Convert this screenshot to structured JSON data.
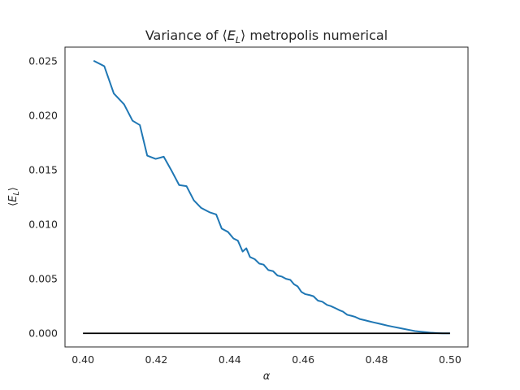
{
  "chart_data": {
    "type": "line",
    "title": "Variance of ⟨Eₗ⟩ metropolis numerical",
    "title_parts": {
      "before": "Variance of ⟨",
      "var": "E",
      "sub": "L",
      "after": "⟩ metropolis numerical"
    },
    "xlabel": "α",
    "ylabel_parts": {
      "before": "⟨",
      "var": "E",
      "sub": "L",
      "after": "⟩"
    },
    "xlim": [
      0.3951,
      0.5049
    ],
    "ylim": [
      -0.00125,
      0.02625
    ],
    "x_ticks": [
      0.4,
      0.42,
      0.44,
      0.46,
      0.48,
      0.5
    ],
    "x_tick_labels": [
      "0.40",
      "0.42",
      "0.44",
      "0.46",
      "0.48",
      "0.50"
    ],
    "y_ticks": [
      0.0,
      0.005,
      0.01,
      0.015,
      0.02,
      0.025
    ],
    "y_tick_labels": [
      "0.000",
      "0.005",
      "0.010",
      "0.015",
      "0.020",
      "0.025"
    ],
    "grid": false,
    "series": [
      {
        "color": "#1f77b4",
        "x": [
          0.4029,
          0.4058,
          0.4084,
          0.4112,
          0.4135,
          0.4155,
          0.4175,
          0.4198,
          0.422,
          0.424,
          0.4262,
          0.4282,
          0.4302,
          0.4322,
          0.4345,
          0.4363,
          0.4378,
          0.4395,
          0.441,
          0.4422,
          0.4435,
          0.4445,
          0.4455,
          0.4468,
          0.448,
          0.4492,
          0.4505,
          0.4518,
          0.453,
          0.4542,
          0.4553,
          0.4565,
          0.4575,
          0.4585,
          0.4595,
          0.4605,
          0.4618,
          0.4628,
          0.464,
          0.4652,
          0.4665,
          0.4675,
          0.4688,
          0.47,
          0.4708,
          0.472,
          0.4732,
          0.4742,
          0.4755,
          0.4768,
          0.478,
          0.4792,
          0.4805,
          0.4818,
          0.483,
          0.4845,
          0.486,
          0.4875,
          0.489,
          0.4905,
          0.492,
          0.4935,
          0.495,
          0.4965,
          0.498,
          0.5
        ],
        "y": [
          0.025,
          0.0245,
          0.022,
          0.021,
          0.0195,
          0.0191,
          0.0163,
          0.016,
          0.0162,
          0.015,
          0.0136,
          0.0135,
          0.0122,
          0.0115,
          0.0111,
          0.0109,
          0.0096,
          0.0093,
          0.0087,
          0.0085,
          0.0075,
          0.0078,
          0.007,
          0.0068,
          0.0064,
          0.0063,
          0.0058,
          0.0057,
          0.0053,
          0.0052,
          0.005,
          0.0049,
          0.0045,
          0.0043,
          0.0038,
          0.0036,
          0.0035,
          0.0034,
          0.003,
          0.0029,
          0.0026,
          0.0025,
          0.0023,
          0.0021,
          0.002,
          0.0017,
          0.0016,
          0.0015,
          0.0013,
          0.0012,
          0.0011,
          0.001,
          0.0009,
          0.0008,
          0.0007,
          0.0006,
          0.0005,
          0.0004,
          0.0003,
          0.0002,
          0.00015,
          0.0001,
          5e-05,
          2e-05,
          0.0,
          0.0
        ]
      },
      {
        "color": "#000000",
        "x": [
          0.4,
          0.5
        ],
        "y": [
          0.0,
          0.0
        ]
      }
    ]
  }
}
